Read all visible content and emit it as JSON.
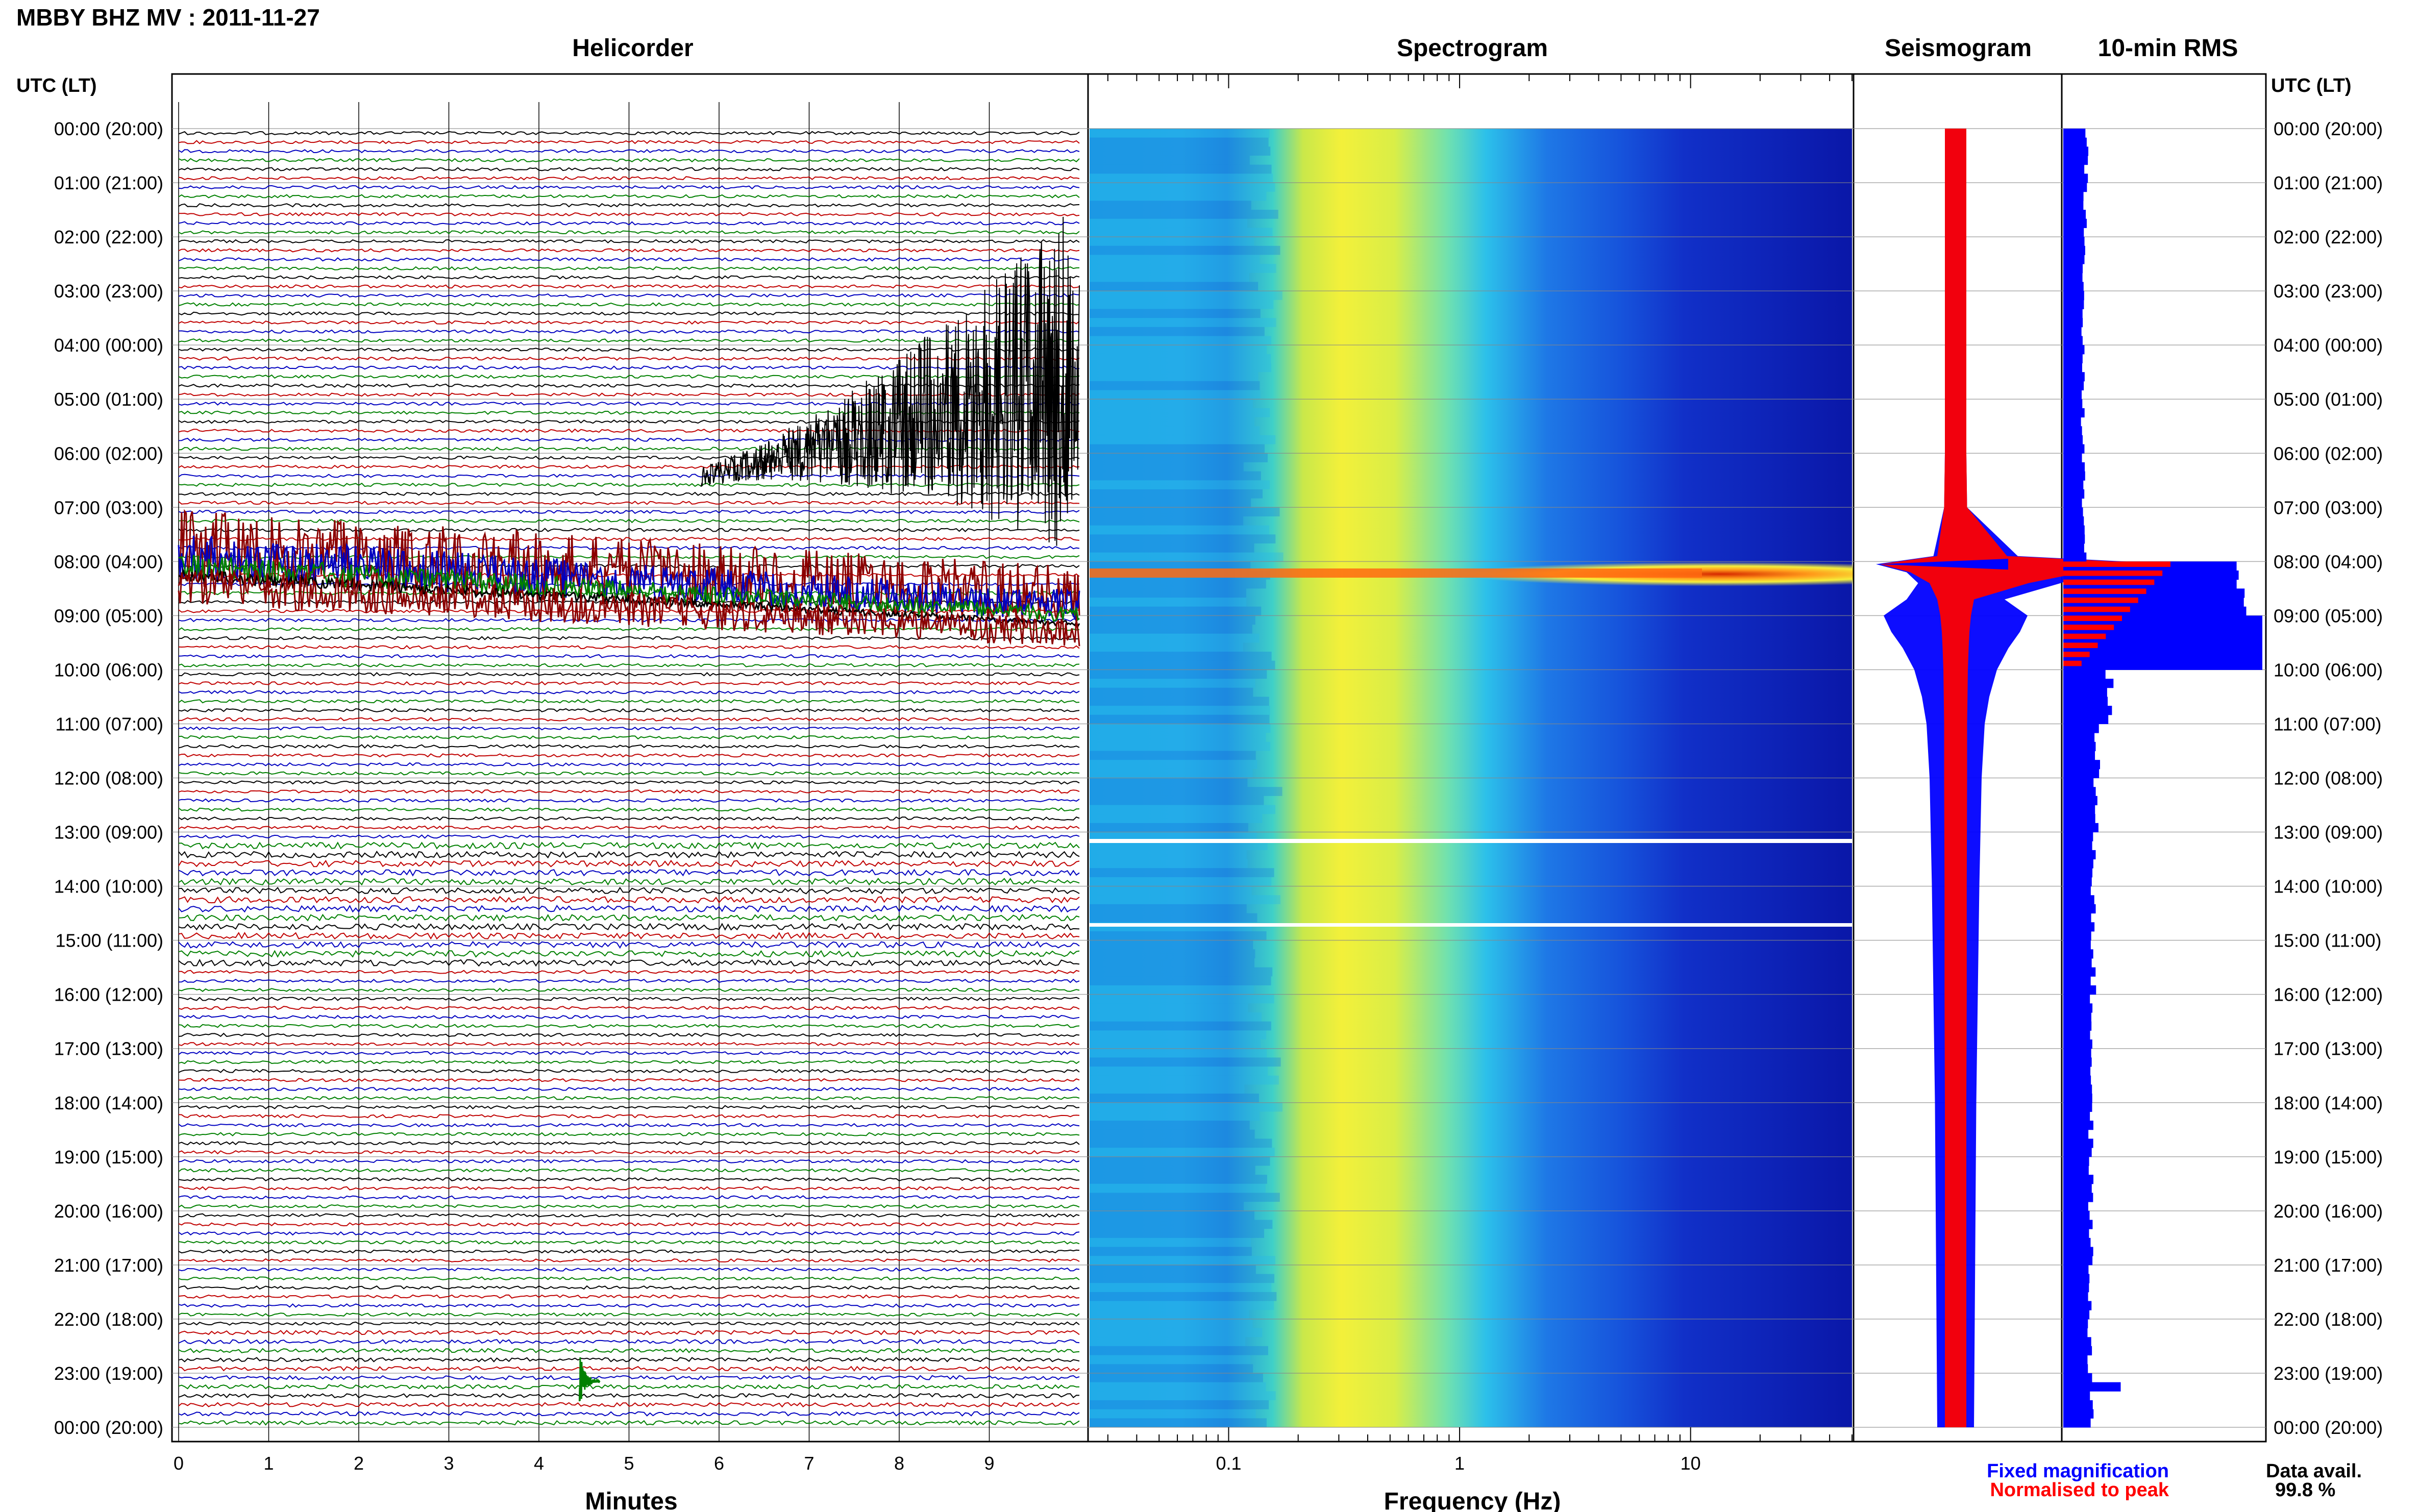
{
  "header": {
    "station_title": "MBBY BHZ MV : 2011-11-27",
    "left_axis_label": "UTC (LT)",
    "right_axis_label": "UTC (LT)"
  },
  "panels": {
    "helicorder_title": "Helicorder",
    "spectrogram_title": "Spectrogram",
    "seismogram_title": "Seismogram",
    "rms_title": "10-min RMS"
  },
  "axes": {
    "helicorder_xlabel": "Minutes",
    "spectrogram_xlabel": "Frequency (Hz)"
  },
  "legend": {
    "fixed": "Fixed magnification",
    "normalised": "Normalised to peak"
  },
  "data_availability": {
    "label": "Data avail.",
    "value": "99.8 %"
  },
  "colors": {
    "trace_cycle": [
      "#000000",
      "#c00000",
      "#0000c0",
      "#008000"
    ],
    "eruption_trace": "#8b0000",
    "fixed_magnification": "#0000ff",
    "normalised_to_peak": "#ff0000",
    "spectrogram_colormap": "jet"
  },
  "chart_data": [
    {
      "type": "line",
      "title": "Helicorder",
      "xlabel": "Minutes",
      "ylabel": "UTC (LT)",
      "x_ticks": [
        "0",
        "1",
        "2",
        "3",
        "4",
        "5",
        "6",
        "7",
        "8",
        "9"
      ],
      "xlim": [
        0,
        10
      ],
      "y_ticks": [
        "00:00 (20:00)",
        "01:00 (21:00)",
        "02:00 (22:00)",
        "03:00 (23:00)",
        "04:00 (00:00)",
        "05:00 (01:00)",
        "06:00 (02:00)",
        "07:00 (03:00)",
        "08:00 (04:00)",
        "09:00 (05:00)",
        "10:00 (06:00)",
        "11:00 (07:00)",
        "12:00 (08:00)",
        "13:00 (09:00)",
        "14:00 (10:00)",
        "15:00 (11:00)",
        "16:00 (12:00)",
        "17:00 (13:00)",
        "18:00 (14:00)",
        "19:00 (15:00)",
        "20:00 (16:00)",
        "21:00 (17:00)",
        "22:00 (18:00)",
        "23:00 (19:00)",
        "00:00 (20:00)"
      ],
      "trace_count": 144,
      "grid": true
    },
    {
      "type": "heatmap",
      "title": "Spectrogram",
      "xlabel": "Frequency (Hz)",
      "x_scale": "log",
      "x_ticks": [
        "0.1",
        "1",
        "10"
      ],
      "xlim": [
        0.025,
        50
      ],
      "colormap": "jet",
      "gaps_utc": [
        "13:05",
        "14:40"
      ],
      "bright_band_utc": [
        "08:00",
        "08:30"
      ],
      "grid": true
    },
    {
      "type": "line",
      "title": "Seismogram",
      "series": [
        {
          "name": "Fixed magnification",
          "color": "#0000ff"
        },
        {
          "name": "Normalised to peak",
          "color": "#ff0000"
        }
      ],
      "hours": [
        0,
        1,
        2,
        3,
        4,
        5,
        6,
        7,
        7.9,
        8.05,
        8.2,
        8.4,
        8.7,
        9.0,
        9.3,
        9.6,
        10,
        10.5,
        11,
        12,
        14,
        16,
        18,
        20,
        22,
        24
      ],
      "fixed_magnification": [
        1,
        1,
        1,
        1,
        1,
        1,
        1,
        1.1,
        2.5,
        10,
        6,
        4.5,
        6,
        9,
        8,
        6.5,
        5,
        4,
        3.4,
        3,
        2.7,
        2.5,
        2.3,
        2.2,
        2.1,
        2
      ],
      "normalised_to_peak": [
        1,
        1,
        1,
        1,
        1,
        1,
        1,
        1.1,
        2,
        9.5,
        5.5,
        3,
        2,
        1.6,
        1.4,
        1.3,
        1.2,
        1.15,
        1.1,
        1.1,
        1.05,
        1.05,
        1,
        1,
        1,
        1
      ]
    },
    {
      "type": "bar",
      "title": "10-min RMS",
      "series": [
        {
          "name": "Fixed magnification",
          "color": "#0000ff"
        },
        {
          "name": "Normalised to peak",
          "color": "#ff0000"
        }
      ],
      "rms_hourly": [
        1.0,
        0.95,
        0.9,
        0.85,
        0.85,
        0.85,
        0.9,
        0.95,
        8.0,
        9.5,
        2.0,
        1.5,
        1.4,
        1.35,
        1.3,
        1.3,
        1.25,
        1.25,
        1.2,
        1.2,
        1.2,
        1.15,
        1.15,
        1.2
      ],
      "peak_hours": [
        8,
        9
      ]
    }
  ]
}
